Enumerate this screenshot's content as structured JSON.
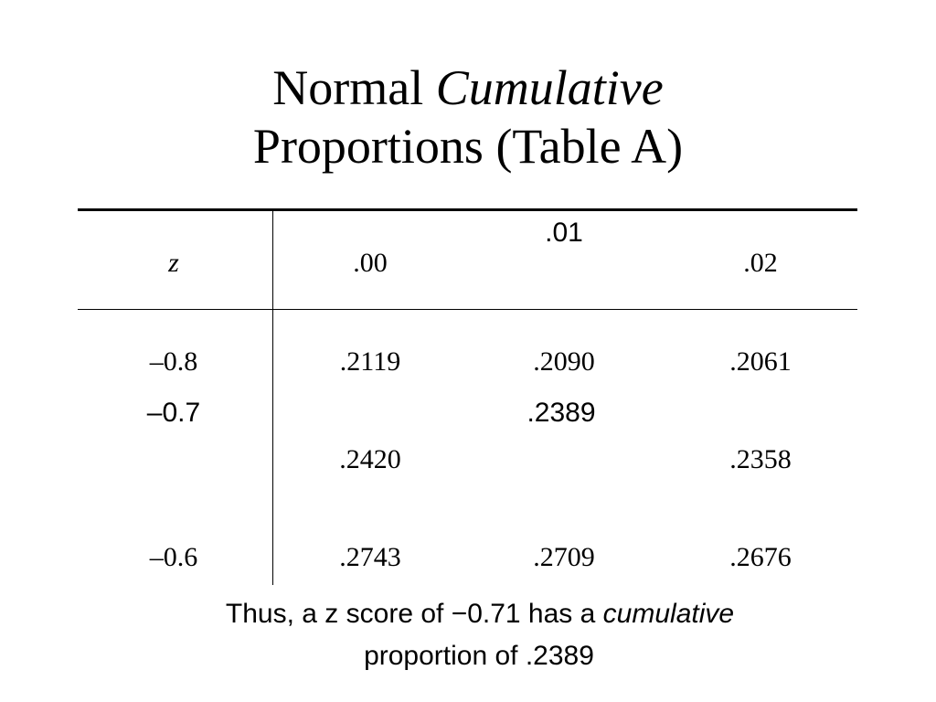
{
  "title": {
    "line1_plain": "Normal",
    "line1_italic": "Cumulative",
    "line2": "Proportions (Table A)"
  },
  "table": {
    "header": [
      "z",
      ".00",
      ".01",
      ".02"
    ],
    "rows": [
      [
        "–0.8",
        ".2119",
        ".2090",
        ".2061"
      ],
      [
        "–0.7",
        ".2420",
        ".2389",
        ".2358"
      ],
      [
        "–0.6",
        ".2743",
        ".2709",
        ".2676"
      ]
    ]
  },
  "footer": {
    "before": "Thus, a z score of −0.71 has a",
    "italic": "cumulative",
    "after": "proportion of .2389"
  }
}
